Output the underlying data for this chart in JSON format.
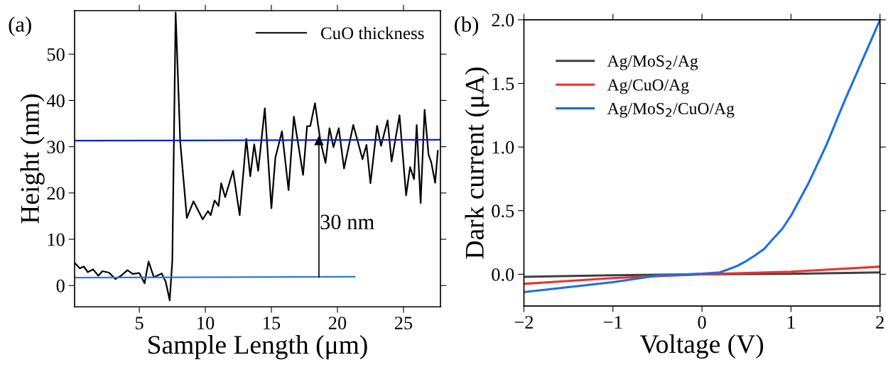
{
  "chart_data": [
    {
      "type": "line",
      "xlabel": "Sample Length (μm)",
      "ylabel": "Height (nm)",
      "xlim": [
        0.1,
        27.8
      ],
      "ylim": [
        -4.6,
        59.4
      ],
      "xticks": [
        5,
        10,
        15,
        20,
        25
      ],
      "yticks": [
        0,
        10,
        20,
        30,
        40,
        50
      ],
      "legend": "top right",
      "grid": false,
      "annotations": [
        "(a)",
        "30 nm"
      ],
      "series": [
        {
          "name": "CuO thickness",
          "color": "#000000",
          "x": [
            0.1,
            0.5,
            0.8,
            1.1,
            1.5,
            1.9,
            2.2,
            2.7,
            3.2,
            3.6,
            4.1,
            4.5,
            5.0,
            5.4,
            5.7,
            6.1,
            6.7,
            7.0,
            7.3,
            7.5,
            7.75,
            8.1,
            8.6,
            9.1,
            9.8,
            10.2,
            10.4,
            10.7,
            11.0,
            11.2,
            11.5,
            12.1,
            12.6,
            13.1,
            13.4,
            13.7,
            14.0,
            14.5,
            15.0,
            15.3,
            15.8,
            16.3,
            16.7,
            17.4,
            17.7,
            17.95,
            18.3,
            18.7,
            19.1,
            19.4,
            19.7,
            20.1,
            20.5,
            21.2,
            21.9,
            22.2,
            22.5,
            23.0,
            23.3,
            23.8,
            24.1,
            24.7,
            25.2,
            25.5,
            25.8,
            26.0,
            26.3,
            26.6,
            26.9,
            27.1,
            27.4,
            27.6
          ],
          "values": [
            4.9,
            3.7,
            4.1,
            2.9,
            3.5,
            2.1,
            3.1,
            2.8,
            1.4,
            2.1,
            3.3,
            2.5,
            2.7,
            0.5,
            5.2,
            1.8,
            2.6,
            0.8,
            -3.2,
            5.4,
            59,
            31,
            14.6,
            18.2,
            14.3,
            16.1,
            15.2,
            18.4,
            17.2,
            22.1,
            19.1,
            24.8,
            15.2,
            31.7,
            23.6,
            30.5,
            24.8,
            38.3,
            16.7,
            27.6,
            33.3,
            20.6,
            36.5,
            23.9,
            34.4,
            34.5,
            39.4,
            31.4,
            26.5,
            34,
            29.9,
            34,
            25.3,
            34.7,
            27.3,
            30.4,
            22.1,
            34.5,
            30.2,
            35.7,
            26.8,
            36.8,
            19.5,
            25.6,
            23,
            34.7,
            17.8,
            38,
            28.2,
            26.7,
            22.2,
            29.1
          ]
        },
        {
          "color": "#0a1fe0",
          "x": [
            0.1,
            27.8
          ],
          "values": [
            31.3,
            31.5
          ]
        },
        {
          "color": "#2a7ae2",
          "x": [
            0.1,
            21.3
          ],
          "values": [
            1.7,
            1.9
          ]
        },
        {
          "color": "#000000",
          "marker": "triangle",
          "x": [
            18.6,
            18.6
          ],
          "values": [
            1.8,
            31.3
          ]
        }
      ]
    },
    {
      "type": "line",
      "xlabel": "Voltage (V)",
      "ylabel": "Dark current (μA)",
      "xlim": [
        -2,
        2
      ],
      "ylim": [
        -0.25,
        2.0
      ],
      "xticks": [
        {
          "value": -2,
          "label": "−2"
        },
        {
          "value": -1,
          "label": "−1"
        },
        0,
        1,
        2
      ],
      "yticks": [
        {
          "value": 0,
          "label": "0.0"
        },
        0.5,
        {
          "value": 1,
          "label": "1.0"
        },
        1.5,
        {
          "value": 2,
          "label": "2.0"
        }
      ],
      "legend": "top left",
      "grid": false,
      "annotations": [
        "(b)"
      ],
      "series": [
        {
          "name": "Ag/MoS$_{2}$/Ag",
          "color": "#404040",
          "x": [
            -2,
            -1,
            0,
            1,
            2
          ],
          "values": [
            -0.02,
            -0.008,
            0,
            0.004,
            0.015
          ]
        },
        {
          "name": "Ag/CuO/Ag",
          "color": "#f03030",
          "x": [
            -2,
            -1,
            0,
            1,
            2
          ],
          "values": [
            -0.075,
            -0.03,
            0,
            0.02,
            0.06
          ]
        },
        {
          "name": "Ag/MoS$_{2}$/CuO/Ag",
          "color": "#1a6fe0",
          "x": [
            -2,
            -1,
            -0.5,
            0,
            0.2,
            0.3,
            0.4,
            0.5,
            0.6,
            0.7,
            0.8,
            0.9,
            1.0,
            1.2,
            1.4,
            1.6,
            1.8,
            2.0
          ],
          "values": [
            -0.14,
            -0.062,
            -0.01,
            0.005,
            0.015,
            0.04,
            0.067,
            0.105,
            0.15,
            0.2,
            0.28,
            0.355,
            0.46,
            0.72,
            1.02,
            1.36,
            1.68,
            2.0
          ]
        }
      ]
    }
  ]
}
